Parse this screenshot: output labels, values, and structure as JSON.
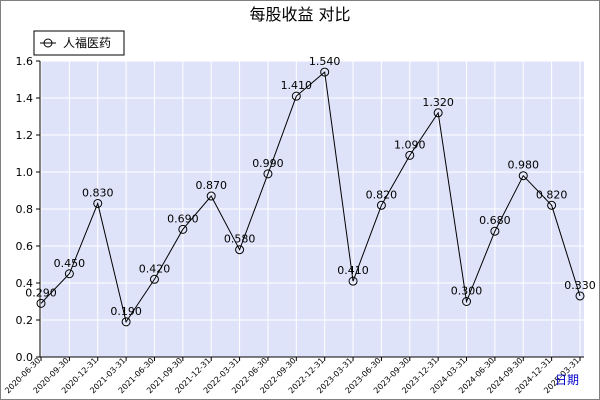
{
  "chart_data": {
    "type": "line",
    "title": "每股收益  对比",
    "xlabel": "日期",
    "ylabel": "",
    "legend": {
      "position": "top-left"
    },
    "grid": true,
    "ylim": [
      0,
      1.6
    ],
    "yticks": [
      "0.0",
      "0.2",
      "0.4",
      "0.6",
      "0.8",
      "1.0",
      "1.2",
      "1.4",
      "1.6"
    ],
    "categories": [
      "2020-06-30",
      "2020-09-30",
      "2020-12-31",
      "2021-03-31",
      "2021-06-30",
      "2021-09-30",
      "2021-12-31",
      "2022-03-31",
      "2022-06-30",
      "2022-09-30",
      "2022-12-31",
      "2023-03-31",
      "2023-06-30",
      "2023-09-30",
      "2023-12-31",
      "2024-03-31",
      "2024-06-30",
      "2024-09-30",
      "2024-12-31",
      "2025-03-31"
    ],
    "series": [
      {
        "name": "人福医药",
        "values": [
          0.29,
          0.45,
          0.83,
          0.19,
          0.42,
          0.69,
          0.87,
          0.58,
          0.99,
          1.41,
          1.54,
          0.41,
          0.82,
          1.09,
          1.32,
          0.3,
          0.68,
          0.98,
          0.82,
          0.33
        ],
        "labels": [
          "0.290",
          "0.450",
          "0.830",
          "0.190",
          "0.420",
          "0.690",
          "0.870",
          "0.580",
          "0.990",
          "1.410",
          "1.540",
          "0.410",
          "0.820",
          "1.090",
          "1.320",
          "0.300",
          "0.680",
          "0.980",
          "0.820",
          "0.330"
        ]
      }
    ]
  },
  "colors": {
    "plot_bg": "#dfe3f9",
    "grid": "#ffffff",
    "line": "#000000",
    "text": "#000000",
    "axis_label": "#0000cc"
  }
}
